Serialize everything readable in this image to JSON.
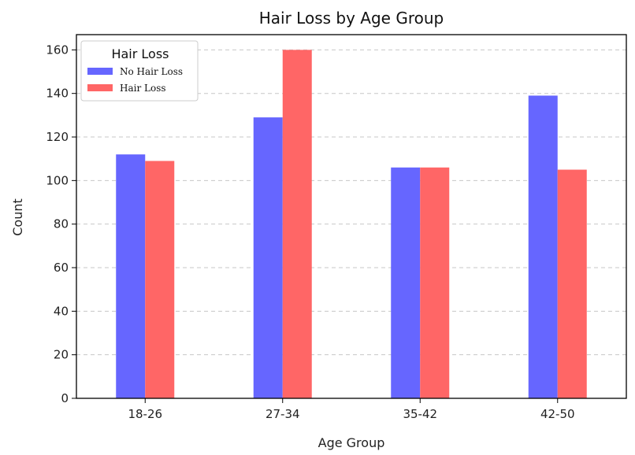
{
  "chart_data": {
    "type": "bar",
    "title": "Hair Loss by Age Group",
    "xlabel": "Age Group",
    "ylabel": "Count",
    "categories": [
      "18-26",
      "27-34",
      "35-42",
      "42-50"
    ],
    "series": [
      {
        "name": "No Hair Loss",
        "values": [
          112,
          129,
          106,
          139
        ],
        "color": "#6666ff"
      },
      {
        "name": "Hair Loss",
        "values": [
          109,
          160,
          106,
          105
        ],
        "color": "#ff6666"
      }
    ],
    "ylim": [
      0,
      167
    ],
    "yticks": [
      0,
      20,
      40,
      60,
      80,
      100,
      120,
      140,
      160
    ],
    "grid": "horizontal-dashed",
    "legend": {
      "title": "Hair Loss",
      "placement": "top-left"
    }
  }
}
